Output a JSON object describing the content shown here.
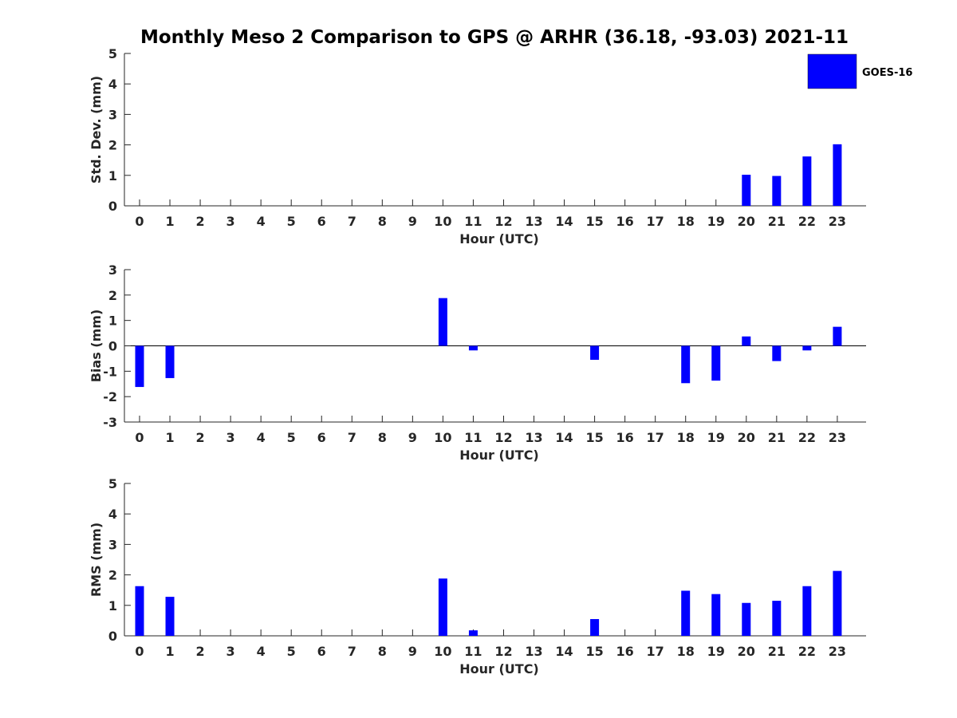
{
  "title": "Monthly Meso 2 Comparison to GPS @ ARHR (36.18, -93.03) 2021-11",
  "legend": {
    "label": "GOES-16",
    "color": "#0000ff",
    "placement": "top-right"
  },
  "chart_data": [
    {
      "type": "bar",
      "panel": "std-dev",
      "xlabel": "Hour (UTC)",
      "ylabel": "Std. Dev. (mm)",
      "ylim": [
        0,
        5
      ],
      "yticks": [
        0,
        1,
        2,
        3,
        4,
        5
      ],
      "categories": [
        "0",
        "1",
        "2",
        "3",
        "4",
        "5",
        "6",
        "7",
        "8",
        "9",
        "10",
        "11",
        "12",
        "13",
        "14",
        "15",
        "16",
        "17",
        "18",
        "19",
        "20",
        "21",
        "22",
        "23"
      ],
      "series": [
        {
          "name": "GOES-16",
          "color": "#0000ff",
          "values": [
            0,
            0,
            0,
            0,
            0,
            0,
            0,
            0,
            0,
            0,
            0,
            0,
            0,
            0,
            0,
            0,
            0,
            0,
            0,
            0,
            1.02,
            0.98,
            1.62,
            2.02
          ]
        }
      ],
      "grid": false
    },
    {
      "type": "bar",
      "panel": "bias",
      "xlabel": "Hour (UTC)",
      "ylabel": "Bias (mm)",
      "ylim": [
        -3,
        3
      ],
      "yticks": [
        -3,
        -2,
        -1,
        0,
        1,
        2,
        3
      ],
      "categories": [
        "0",
        "1",
        "2",
        "3",
        "4",
        "5",
        "6",
        "7",
        "8",
        "9",
        "10",
        "11",
        "12",
        "13",
        "14",
        "15",
        "16",
        "17",
        "18",
        "19",
        "20",
        "21",
        "22",
        "23"
      ],
      "series": [
        {
          "name": "GOES-16",
          "color": "#0000ff",
          "values": [
            -1.62,
            -1.27,
            0,
            0,
            0,
            0,
            0,
            0,
            0,
            0,
            1.88,
            -0.18,
            0,
            0,
            0,
            -0.55,
            0,
            0,
            -1.47,
            -1.37,
            0.37,
            -0.6,
            -0.18,
            0.75
          ]
        }
      ],
      "grid": false
    },
    {
      "type": "bar",
      "panel": "rms",
      "xlabel": "Hour (UTC)",
      "ylabel": "RMS (mm)",
      "ylim": [
        0,
        5
      ],
      "yticks": [
        0,
        1,
        2,
        3,
        4,
        5
      ],
      "categories": [
        "0",
        "1",
        "2",
        "3",
        "4",
        "5",
        "6",
        "7",
        "8",
        "9",
        "10",
        "11",
        "12",
        "13",
        "14",
        "15",
        "16",
        "17",
        "18",
        "19",
        "20",
        "21",
        "22",
        "23"
      ],
      "series": [
        {
          "name": "GOES-16",
          "color": "#0000ff",
          "values": [
            1.63,
            1.28,
            0,
            0,
            0,
            0,
            0,
            0,
            0,
            0,
            1.88,
            0.18,
            0,
            0,
            0,
            0.55,
            0,
            0,
            1.48,
            1.37,
            1.08,
            1.15,
            1.63,
            2.13
          ]
        }
      ],
      "grid": false
    }
  ]
}
